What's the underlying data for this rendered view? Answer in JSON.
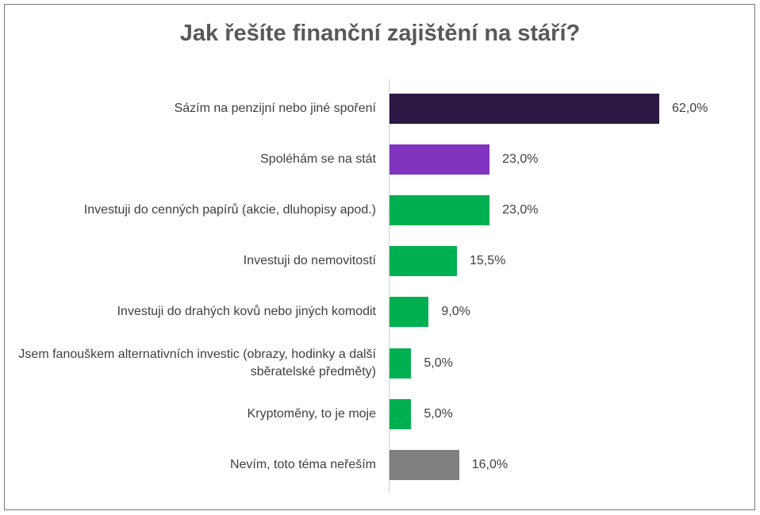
{
  "chart_data": {
    "type": "barh",
    "title": "Jak řešíte finanční zajištění na stáří?",
    "categories": [
      "Sázím na penzijní nebo jiné spoření",
      "Spoléhám se na stát",
      "Investuji do cenných papírů (akcie, dluhopisy apod.)",
      "Investuji do nemovitostí",
      "Investuji do drahých kovů nebo jiných komodit",
      "Jsem fanouškem alternativních investic (obrazy, hodinky a další sběratelské předměty)",
      "Kryptoměny, to je moje",
      "Nevím, toto téma neřeším"
    ],
    "values": [
      62.0,
      23.0,
      23.0,
      15.5,
      9.0,
      5.0,
      5.0,
      16.0
    ],
    "value_labels": [
      "62,0%",
      "23,0%",
      "23,0%",
      "15,5%",
      "9,0%",
      "5,0%",
      "5,0%",
      "16,0%"
    ],
    "colors": [
      "#2c1745",
      "#8033bf",
      "#00b050",
      "#00b050",
      "#00b050",
      "#00b050",
      "#00b050",
      "#7f7f7f"
    ]
  }
}
